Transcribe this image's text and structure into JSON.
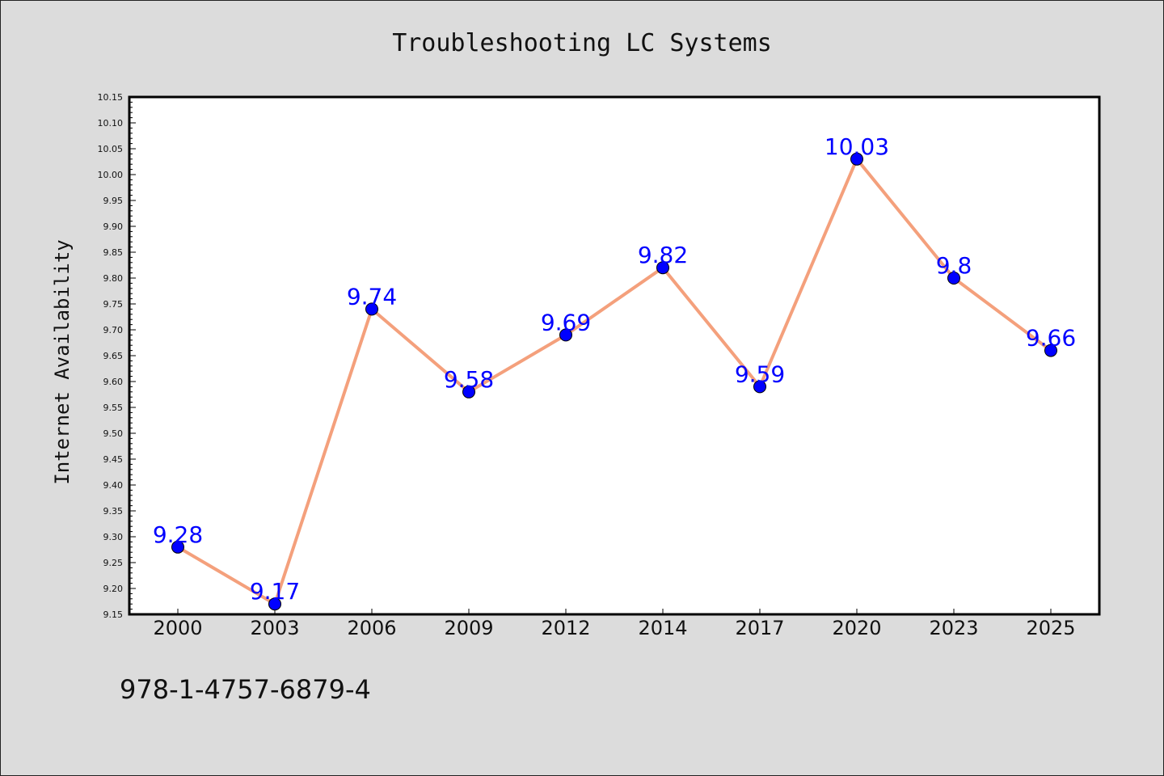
{
  "chart_data": {
    "type": "line",
    "title": "Troubleshooting LC Systems",
    "xlabel": "",
    "ylabel": "Internet Availability",
    "categories": [
      "2000",
      "2003",
      "2006",
      "2009",
      "2012",
      "2014",
      "2017",
      "2020",
      "2023",
      "2025"
    ],
    "series": [
      {
        "values": [
          9.28,
          9.17,
          9.74,
          9.58,
          9.69,
          9.82,
          9.59,
          10.03,
          9.8,
          9.66
        ]
      }
    ],
    "data_labels": [
      "9.28",
      "9.17",
      "9.74",
      "9.58",
      "9.69",
      "9.82",
      "9.59",
      "10.03",
      "9.8",
      "9.66"
    ],
    "ylim": [
      9.15,
      10.15
    ],
    "yticks": [
      "9.15",
      "9.20",
      "9.25",
      "9.30",
      "9.35",
      "9.40",
      "9.45",
      "9.50",
      "9.55",
      "9.60",
      "9.65",
      "9.70",
      "9.75",
      "9.80",
      "9.85",
      "9.90",
      "9.95",
      "10.00",
      "10.05",
      "10.10",
      "10.15"
    ],
    "grid": false,
    "legend": "none",
    "colors": {
      "line": "#f4a07c",
      "marker": "#0000ff",
      "label": "#0000ff"
    }
  },
  "footer": {
    "isbn": "978-1-4757-6879-4"
  }
}
